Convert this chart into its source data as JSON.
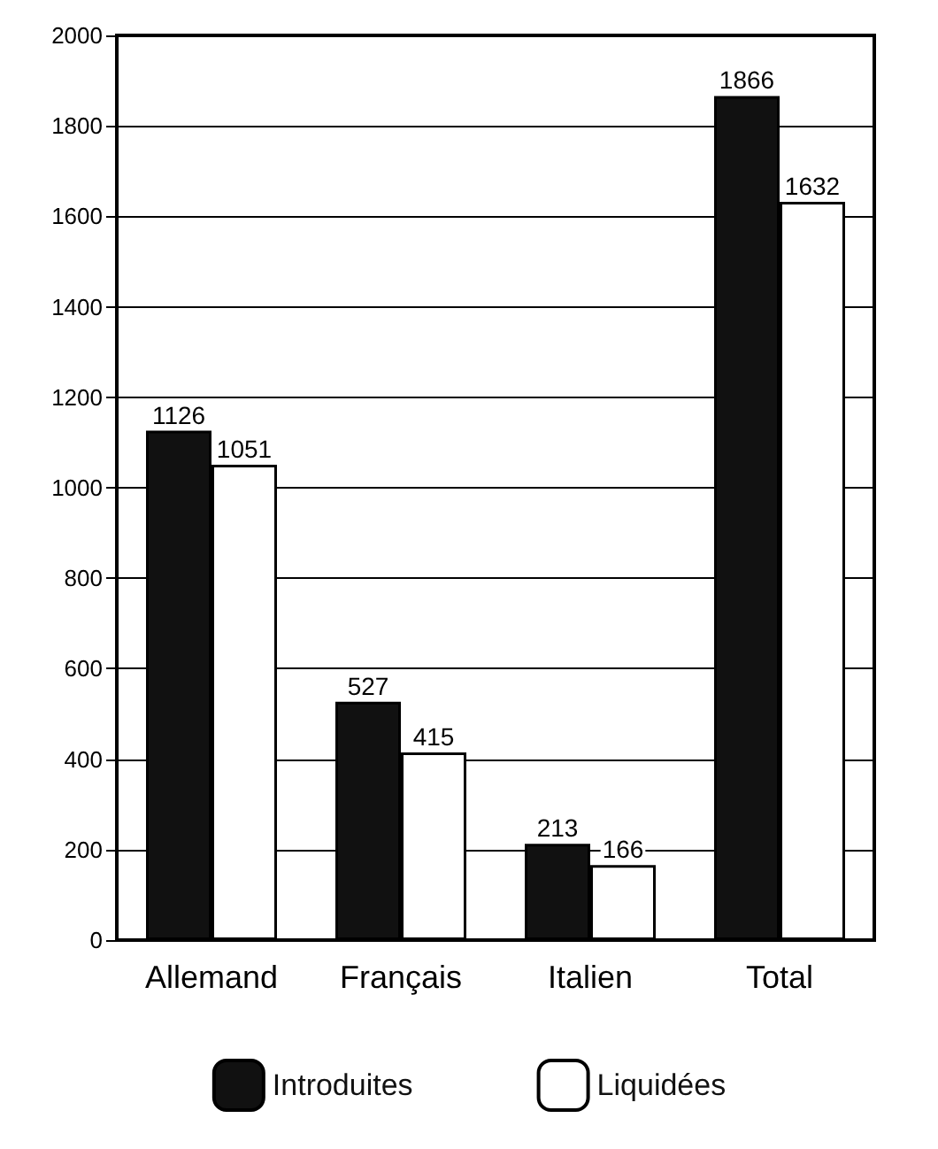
{
  "chart_data": {
    "type": "bar",
    "categories": [
      "Allemand",
      "Français",
      "Italien",
      "Total"
    ],
    "series": [
      {
        "name": "Introduites",
        "color": "#111111",
        "values": [
          1126,
          527,
          213,
          1866
        ]
      },
      {
        "name": "Liquidées",
        "color": "#ffffff",
        "values": [
          1051,
          415,
          166,
          1632
        ]
      }
    ],
    "ylim": [
      0,
      2000
    ],
    "yticks": [
      0,
      200,
      400,
      600,
      800,
      1000,
      1200,
      1400,
      1600,
      1800,
      2000
    ],
    "grid": "y",
    "legend": "bottom",
    "data_labels": true
  }
}
